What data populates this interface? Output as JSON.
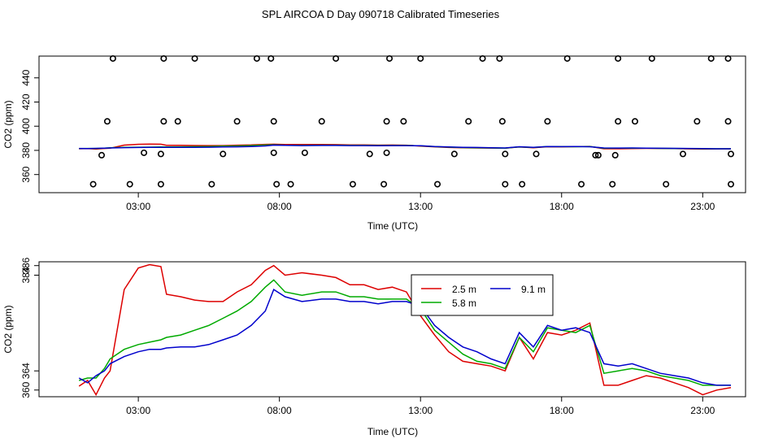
{
  "title": "SPL AIRCOA D  Day 090718  Calibrated Timeseries",
  "chart_data": [
    {
      "type": "scatter+line",
      "title": "SPL AIRCOA D  Day 090718  Calibrated Timeseries",
      "xlabel": "Time (UTC)",
      "ylabel": "CO2 (ppm)",
      "xlim": [
        0,
        24
      ],
      "ylim": [
        345,
        458
      ],
      "xticks": [
        3,
        8,
        13,
        18,
        23
      ],
      "xtick_labels": [
        "03:00",
        "08:00",
        "13:00",
        "18:00",
        "23:00"
      ],
      "yticks": [
        360,
        380,
        400,
        420,
        440
      ],
      "ytick_labels": [
        "360",
        "380",
        "400",
        "420",
        "440"
      ],
      "series": [
        {
          "name": "2.5 m",
          "color": "#dd0000"
        },
        {
          "name": "5.8 m",
          "color": "#00aa00"
        },
        {
          "name": "9.1 m",
          "color": "#0000cc"
        }
      ],
      "circle_levels": [
        352,
        376,
        404,
        456
      ],
      "circles": [
        [
          1.4,
          352
        ],
        [
          1.7,
          376
        ],
        [
          1.9,
          404
        ],
        [
          2.1,
          456
        ],
        [
          2.7,
          352
        ],
        [
          3.2,
          378
        ],
        [
          3.8,
          352
        ],
        [
          3.8,
          377
        ],
        [
          3.9,
          404
        ],
        [
          3.9,
          456
        ],
        [
          4.4,
          404
        ],
        [
          5.0,
          456
        ],
        [
          5.6,
          352
        ],
        [
          6.0,
          377
        ],
        [
          6.5,
          404
        ],
        [
          7.2,
          456
        ],
        [
          7.7,
          456
        ],
        [
          7.8,
          404
        ],
        [
          7.8,
          378
        ],
        [
          7.9,
          352
        ],
        [
          8.4,
          352
        ],
        [
          8.9,
          378
        ],
        [
          9.5,
          404
        ],
        [
          10.0,
          456
        ],
        [
          10.6,
          352
        ],
        [
          11.2,
          377
        ],
        [
          11.7,
          352
        ],
        [
          11.8,
          378
        ],
        [
          11.8,
          404
        ],
        [
          11.9,
          456
        ],
        [
          12.4,
          404
        ],
        [
          13.0,
          456
        ],
        [
          13.6,
          352
        ],
        [
          14.2,
          377
        ],
        [
          14.7,
          404
        ],
        [
          15.2,
          456
        ],
        [
          15.8,
          456
        ],
        [
          15.9,
          404
        ],
        [
          16.0,
          377
        ],
        [
          16.0,
          352
        ],
        [
          16.6,
          352
        ],
        [
          17.1,
          377
        ],
        [
          17.5,
          404
        ],
        [
          18.2,
          456
        ],
        [
          18.7,
          352
        ],
        [
          19.2,
          376
        ],
        [
          19.3,
          376
        ],
        [
          19.8,
          352
        ],
        [
          19.9,
          376
        ],
        [
          20.0,
          404
        ],
        [
          20.0,
          456
        ],
        [
          20.6,
          404
        ],
        [
          21.2,
          456
        ],
        [
          21.7,
          352
        ],
        [
          22.3,
          377
        ],
        [
          22.8,
          404
        ],
        [
          23.3,
          456
        ],
        [
          23.9,
          456
        ],
        [
          23.9,
          404
        ],
        [
          24.0,
          377
        ],
        [
          24.0,
          352
        ]
      ]
    },
    {
      "type": "line",
      "xlabel": "Time (UTC)",
      "ylabel": "CO2 (ppm)",
      "xlim": [
        0,
        24
      ],
      "ylim": [
        358.6,
        386.8
      ],
      "xticks": [
        3,
        8,
        13,
        18,
        23
      ],
      "xtick_labels": [
        "03:00",
        "08:00",
        "13:00",
        "18:00",
        "23:00"
      ],
      "yticks": [
        360,
        364,
        384,
        386
      ],
      "ytick_labels": [
        "360",
        "364",
        "384",
        "386"
      ],
      "legend": {
        "position": "top-right",
        "entries": [
          "2.5 m",
          "5.8 m",
          "9.1 m"
        ]
      },
      "x": [
        0.9,
        1.2,
        1.5,
        1.8,
        2.0,
        2.5,
        3.0,
        3.4,
        3.8,
        4.0,
        4.5,
        5.0,
        5.5,
        6.0,
        6.5,
        7.0,
        7.5,
        7.8,
        8.2,
        8.8,
        9.5,
        10.0,
        10.5,
        11.0,
        11.5,
        12.0,
        12.5,
        13.0,
        13.5,
        14.0,
        14.5,
        15.0,
        15.5,
        16.0,
        16.5,
        17.0,
        17.5,
        18.0,
        18.5,
        19.0,
        19.5,
        20.0,
        20.5,
        21.0,
        21.5,
        22.0,
        22.5,
        23.0,
        23.5,
        24.0
      ],
      "series": [
        {
          "name": "2.5 m",
          "color": "#dd0000",
          "values": [
            360.8,
            362.0,
            359.0,
            362.5,
            364.0,
            381.0,
            385.5,
            386.2,
            385.8,
            380.0,
            379.5,
            378.8,
            378.5,
            378.5,
            380.5,
            382.0,
            385.0,
            386.0,
            384.0,
            384.5,
            384.0,
            383.5,
            382.0,
            382.0,
            381.0,
            381.5,
            380.5,
            375.5,
            371.5,
            368.0,
            366.0,
            365.5,
            365.0,
            364.0,
            371.0,
            366.5,
            372.0,
            371.5,
            372.5,
            374.0,
            361.0,
            361.0,
            362.0,
            363.0,
            362.5,
            361.5,
            360.5,
            359.0,
            360.0,
            360.5
          ]
        },
        {
          "name": "5.8 m",
          "color": "#00aa00",
          "values": [
            362.0,
            362.5,
            362.5,
            364.5,
            366.5,
            368.5,
            369.5,
            370.0,
            370.5,
            371.0,
            371.5,
            372.5,
            373.5,
            375.0,
            376.5,
            378.5,
            381.5,
            383.0,
            380.5,
            379.8,
            380.5,
            380.5,
            379.5,
            379.5,
            379.0,
            379.0,
            379.0,
            377.0,
            372.5,
            370.0,
            367.5,
            366.0,
            365.5,
            364.5,
            371.0,
            368.0,
            373.0,
            372.5,
            372.0,
            373.5,
            363.5,
            364.0,
            364.5,
            364.0,
            363.0,
            362.5,
            362.0,
            361.0,
            361.0,
            361.0
          ]
        },
        {
          "name": "9.1 m",
          "color": "#0000cc",
          "values": [
            362.5,
            361.5,
            363.0,
            364.0,
            365.5,
            367.0,
            368.0,
            368.5,
            368.5,
            368.8,
            369.0,
            369.0,
            369.5,
            370.5,
            371.5,
            373.5,
            376.5,
            381.0,
            379.5,
            378.5,
            379.0,
            379.0,
            378.5,
            378.5,
            378.0,
            378.5,
            378.5,
            377.5,
            373.5,
            371.0,
            369.0,
            368.0,
            366.5,
            365.5,
            372.0,
            369.0,
            373.5,
            372.5,
            373.0,
            372.0,
            365.5,
            365.0,
            365.5,
            364.5,
            363.5,
            363.0,
            362.5,
            361.5,
            361.0,
            361.0
          ]
        }
      ]
    }
  ]
}
